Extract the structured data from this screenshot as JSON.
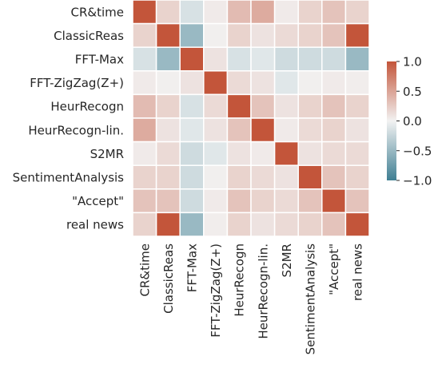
{
  "chart_data": {
    "type": "heatmap",
    "title": "",
    "xlabel": "",
    "ylabel": "",
    "labels": [
      "CR&time",
      "ClassicReas",
      "FFT-Max",
      "FFT-ZigZag(Z+)",
      "HeurRecogn",
      "HeurRecogn-lin.",
      "S2MR",
      "SentimentAnalysis",
      "\"Accept\"",
      "real news"
    ],
    "matrix": [
      [
        1.0,
        0.2,
        -0.15,
        0.05,
        0.35,
        0.45,
        0.05,
        0.2,
        0.3,
        0.2
      ],
      [
        0.2,
        1.0,
        -0.5,
        0.02,
        0.2,
        0.1,
        0.15,
        0.2,
        0.3,
        1.0
      ],
      [
        -0.15,
        -0.5,
        1.0,
        0.1,
        -0.15,
        -0.1,
        -0.2,
        -0.2,
        -0.2,
        -0.5
      ],
      [
        0.05,
        0.02,
        0.1,
        1.0,
        0.15,
        0.1,
        -0.1,
        0.02,
        0.05,
        0.03
      ],
      [
        0.35,
        0.2,
        -0.15,
        0.15,
        1.0,
        0.3,
        0.1,
        0.2,
        0.3,
        0.2
      ],
      [
        0.45,
        0.1,
        -0.1,
        0.1,
        0.3,
        1.0,
        0.05,
        0.15,
        0.2,
        0.1
      ],
      [
        0.05,
        0.15,
        -0.2,
        -0.1,
        0.1,
        0.05,
        1.0,
        0.1,
        0.15,
        0.15
      ],
      [
        0.2,
        0.2,
        -0.2,
        0.02,
        0.2,
        0.15,
        0.1,
        1.0,
        0.3,
        0.2
      ],
      [
        0.3,
        0.3,
        -0.2,
        0.05,
        0.3,
        0.2,
        0.15,
        0.3,
        1.0,
        0.3
      ],
      [
        0.2,
        1.0,
        -0.5,
        0.03,
        0.2,
        0.1,
        0.15,
        0.2,
        0.3,
        1.0
      ]
    ],
    "vmin": -1.0,
    "vmax": 1.0,
    "colorbar": {
      "ticks": [
        1.0,
        0.5,
        0.0,
        -0.5,
        -1.0
      ],
      "tick_labels": [
        "1.0",
        "0.5",
        "0.0",
        "−0.5",
        "−1.0"
      ],
      "placement": "right"
    },
    "colors": {
      "negative": "#3f7f93",
      "center": "#f2f2f2",
      "positive": "#c3553a",
      "grid": "#ffffff",
      "text": "#262626"
    }
  }
}
